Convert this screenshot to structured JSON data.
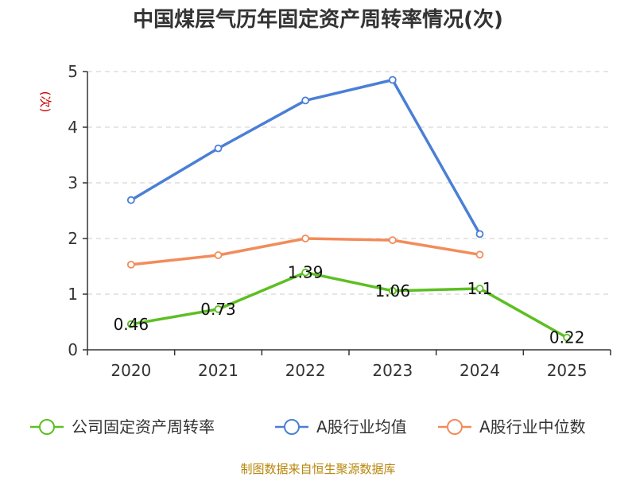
{
  "chart_data": {
    "type": "line",
    "title": "中国煤层气历年固定资产周转率情况(次)",
    "ylabel": "(次)",
    "xlabel": "",
    "categories": [
      "2020",
      "2021",
      "2022",
      "2023",
      "2024",
      "2025"
    ],
    "ylim": [
      0,
      5
    ],
    "yticks": [
      0,
      1,
      2,
      3,
      4,
      5
    ],
    "grid": true,
    "legend_position": "bottom",
    "series": [
      {
        "name": "公司固定资产周转率",
        "color": "#5cbf22",
        "values": [
          0.46,
          0.73,
          1.39,
          1.06,
          1.1,
          0.22
        ],
        "labels": [
          "0.46",
          "0.73",
          "1.39",
          "1.06",
          "1.1",
          "0.22"
        ]
      },
      {
        "name": "A股行业均值",
        "color": "#4a7fd6",
        "values": [
          2.69,
          3.62,
          4.48,
          4.85,
          2.08,
          null
        ]
      },
      {
        "name": "A股行业中位数",
        "color": "#f28c5a",
        "values": [
          1.53,
          1.7,
          2.0,
          1.97,
          1.71,
          null
        ]
      }
    ]
  },
  "source": "制图数据来自恒生聚源数据库"
}
